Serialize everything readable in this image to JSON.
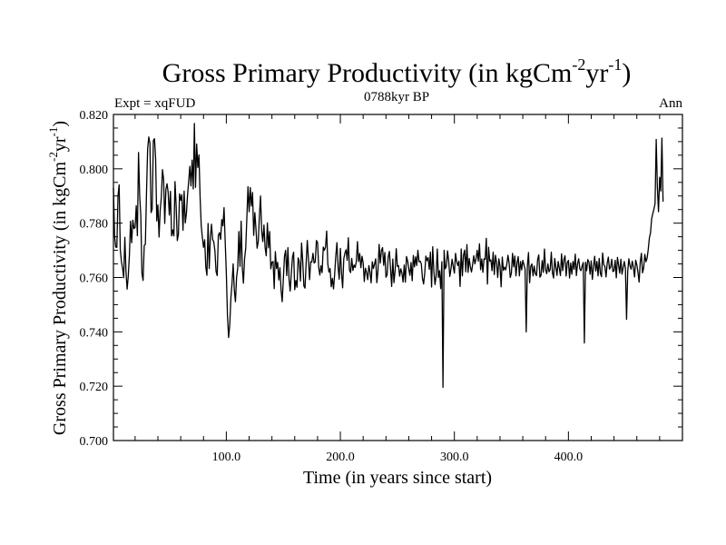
{
  "chart_data": {
    "type": "line",
    "title_main": "Gross Primary Productivity (in kgCm",
    "title_sup1": "-2",
    "title_mid": "yr",
    "title_sup2": "-1",
    "title_end": ")",
    "left_label": "Expt = xqFUD",
    "center_label": "0788kyr BP",
    "right_label": "Ann",
    "xlabel": "Time (in years since start)",
    "ylabel_main": "Gross Primary Productivity (in kgCm",
    "ylabel_sup1": "-2",
    "ylabel_mid": "yr",
    "ylabel_sup2": "-1",
    "ylabel_end": ")",
    "xlim": [
      1,
      500
    ],
    "ylim": [
      0.7,
      0.82
    ],
    "x_ticks": [
      100,
      200,
      300,
      400
    ],
    "x_tick_labels": [
      "100.0",
      "200.0",
      "300.0",
      "400.0"
    ],
    "y_ticks": [
      0.7,
      0.72,
      0.74,
      0.76,
      0.78,
      0.8,
      0.82
    ],
    "y_tick_labels": [
      "0.700",
      "0.720",
      "0.740",
      "0.760",
      "0.780",
      "0.800",
      "0.820"
    ],
    "x_start": 1,
    "x_step": 1,
    "values": [
      0.793,
      0.7752,
      0.7712,
      0.7711,
      0.7901,
      0.7941,
      0.7703,
      0.7659,
      0.7634,
      0.7599,
      0.7748,
      0.7622,
      0.7557,
      0.7605,
      0.7682,
      0.7807,
      0.7728,
      0.7811,
      0.778,
      0.7784,
      0.7864,
      0.7754,
      0.806,
      0.7903,
      0.7827,
      0.7615,
      0.7589,
      0.7718,
      0.7722,
      0.7911,
      0.8075,
      0.8117,
      0.8094,
      0.7839,
      0.7852,
      0.8104,
      0.8111,
      0.8037,
      0.7808,
      0.7867,
      0.7749,
      0.7848,
      0.7895,
      0.7997,
      0.7962,
      0.7799,
      0.7924,
      0.7945,
      0.7913,
      0.783,
      0.7917,
      0.7753,
      0.7775,
      0.7753,
      0.7953,
      0.7863,
      0.7736,
      0.7759,
      0.7908,
      0.7884,
      0.7905,
      0.7774,
      0.7918,
      0.7801,
      0.7836,
      0.7904,
      0.7954,
      0.8009,
      0.7937,
      0.8032,
      0.7926,
      0.8167,
      0.7932,
      0.8091,
      0.8005,
      0.8051,
      0.7897,
      0.779,
      0.7747,
      0.7711,
      0.7739,
      0.7638,
      0.7608,
      0.7799,
      0.7633,
      0.7747,
      0.7796,
      0.774,
      0.7731,
      0.7698,
      0.7622,
      0.7607,
      0.7755,
      0.7765,
      0.774,
      0.7813,
      0.779,
      0.7857,
      0.7733,
      0.7617,
      0.746,
      0.7379,
      0.7425,
      0.7525,
      0.7578,
      0.765,
      0.7554,
      0.7511,
      0.7601,
      0.7635,
      0.7769,
      0.7641,
      0.7807,
      0.7637,
      0.7579,
      0.7669,
      0.7707,
      0.7819,
      0.7934,
      0.7842,
      0.7931,
      0.7863,
      0.7913,
      0.7755,
      0.7839,
      0.7779,
      0.7708,
      0.7733,
      0.7825,
      0.79,
      0.7772,
      0.7732,
      0.7793,
      0.771,
      0.768,
      0.7801,
      0.7709,
      0.7769,
      0.7632,
      0.7656,
      0.7659,
      0.7559,
      0.7695,
      0.7633,
      0.7656,
      0.7591,
      0.7636,
      0.7555,
      0.7511,
      0.7593,
      0.7678,
      0.77,
      0.7607,
      0.771,
      0.7594,
      0.755,
      0.7617,
      0.7674,
      0.7693,
      0.7555,
      0.7589,
      0.7564,
      0.7672,
      0.7658,
      0.7587,
      0.7727,
      0.766,
      0.7569,
      0.7561,
      0.7653,
      0.7736,
      0.7668,
      0.7592,
      0.7658,
      0.7657,
      0.7689,
      0.7653,
      0.7657,
      0.7736,
      0.7729,
      0.7638,
      0.7609,
      0.7643,
      0.7618,
      0.7712,
      0.77,
      0.7712,
      0.7771,
      0.765,
      0.762,
      0.7633,
      0.7566,
      0.7597,
      0.7558,
      0.7612,
      0.7679,
      0.7728,
      0.764,
      0.7594,
      0.7707,
      0.7617,
      0.7562,
      0.7669,
      0.769,
      0.7702,
      0.7663,
      0.7746,
      0.7627,
      0.7618,
      0.767,
      0.7626,
      0.7646,
      0.7637,
      0.7658,
      0.7732,
      0.7659,
      0.7688,
      0.7636,
      0.7678,
      0.7654,
      0.7585,
      0.7634,
      0.7618,
      0.7592,
      0.7644,
      0.762,
      0.758,
      0.7658,
      0.7633,
      0.765,
      0.7669,
      0.7581,
      0.7625,
      0.7722,
      0.7653,
      0.7699,
      0.771,
      0.7645,
      0.7692,
      0.7601,
      0.761,
      0.7676,
      0.7696,
      0.7633,
      0.7567,
      0.7668,
      0.7581,
      0.7625,
      0.7706,
      0.7641,
      0.7644,
      0.7605,
      0.7632,
      0.7616,
      0.7583,
      0.7646,
      0.7583,
      0.7677,
      0.7661,
      0.7631,
      0.7608,
      0.7655,
      0.7588,
      0.7681,
      0.7639,
      0.7676,
      0.7644,
      0.77,
      0.7658,
      0.766,
      0.765,
      0.7597,
      0.7576,
      0.7616,
      0.7679,
      0.7662,
      0.7673,
      0.763,
      0.7693,
      0.7565,
      0.7713,
      0.7624,
      0.7574,
      0.7606,
      0.7705,
      0.76,
      0.7625,
      0.7559,
      0.7658,
      0.7196,
      0.77,
      0.7632,
      0.7642,
      0.7698,
      0.7661,
      0.7604,
      0.7631,
      0.7667,
      0.764,
      0.7616,
      0.7689,
      0.7658,
      0.7644,
      0.766,
      0.7567,
      0.7705,
      0.7606,
      0.7682,
      0.7701,
      0.7621,
      0.7721,
      0.7619,
      0.767,
      0.7639,
      0.762,
      0.7648,
      0.768,
      0.765,
      0.7669,
      0.77,
      0.766,
      0.7724,
      0.7629,
      0.7668,
      0.7619,
      0.7669,
      0.7667,
      0.7744,
      0.7576,
      0.7711,
      0.766,
      0.7665,
      0.7625,
      0.7693,
      0.7611,
      0.7682,
      0.7655,
      0.76,
      0.7669,
      0.7642,
      0.7566,
      0.7675,
      0.7626,
      0.7638,
      0.7628,
      0.7649,
      0.7682,
      0.7653,
      0.76,
      0.7616,
      0.7689,
      0.7639,
      0.7679,
      0.7606,
      0.7655,
      0.7677,
      0.7606,
      0.7659,
      0.7628,
      0.7663,
      0.7647,
      0.763,
      0.74,
      0.7641,
      0.7692,
      0.7581,
      0.7641,
      0.765,
      0.7606,
      0.7642,
      0.7614,
      0.7607,
      0.7666,
      0.7683,
      0.7601,
      0.7608,
      0.7662,
      0.7619,
      0.7705,
      0.7628,
      0.7614,
      0.765,
      0.7621,
      0.7629,
      0.7693,
      0.7617,
      0.7598,
      0.767,
      0.7638,
      0.7608,
      0.7659,
      0.7635,
      0.7607,
      0.7687,
      0.7625,
      0.7665,
      0.768,
      0.7605,
      0.7655,
      0.7663,
      0.7598,
      0.7653,
      0.7612,
      0.7659,
      0.763,
      0.7686,
      0.7607,
      0.765,
      0.7669,
      0.7632,
      0.7625,
      0.7642,
      0.7655,
      0.7359,
      0.7656,
      0.7625,
      0.7666,
      0.7657,
      0.7612,
      0.7661,
      0.7593,
      0.764,
      0.7678,
      0.7624,
      0.7659,
      0.7606,
      0.767,
      0.7616,
      0.7603,
      0.769,
      0.7647,
      0.7641,
      0.7602,
      0.7652,
      0.7675,
      0.7631,
      0.7638,
      0.7667,
      0.7622,
      0.7624,
      0.7663,
      0.7599,
      0.7674,
      0.7646,
      0.7616,
      0.7667,
      0.7612,
      0.7637,
      0.7659,
      0.7633,
      0.7446,
      0.7622,
      0.7669,
      0.7643,
      0.7631,
      0.766,
      0.7637,
      0.7602,
      0.7664,
      0.7647,
      0.7619,
      0.7583,
      0.7656,
      0.7689,
      0.7617,
      0.7635,
      0.7685,
      0.7658,
      0.7671,
      0.7703,
      0.7745,
      0.7765,
      0.7816,
      0.7835,
      0.7852,
      0.7872,
      0.8108,
      0.7934,
      0.7842,
      0.7969,
      0.7918,
      0.8113,
      0.7879
    ]
  }
}
